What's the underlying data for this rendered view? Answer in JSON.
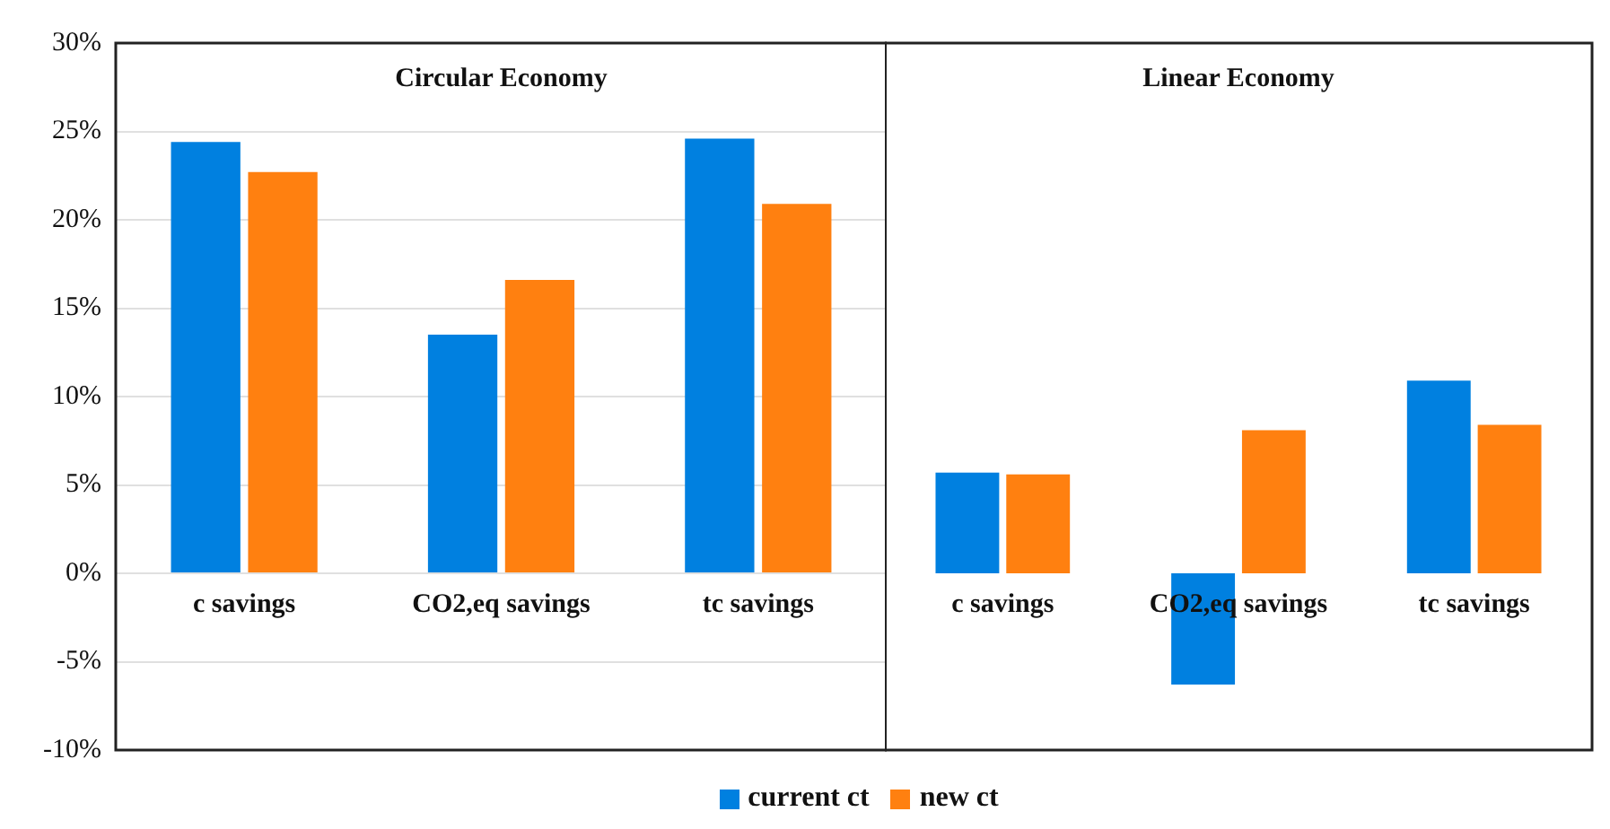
{
  "chart_data": [
    {
      "type": "bar",
      "title": "Circular Economy",
      "categories": [
        "c savings",
        "CO2,eq savings",
        "tc savings"
      ],
      "series": [
        {
          "name": "current ct",
          "color": "#0080e0",
          "values": [
            24.4,
            13.5,
            24.6
          ]
        },
        {
          "name": "new ct",
          "color": "#ff8010",
          "values": [
            22.7,
            16.6,
            20.9
          ]
        }
      ],
      "ylim": [
        -10,
        30
      ],
      "yticks": [
        {
          "value": -10,
          "label": "-10%"
        },
        {
          "value": -5,
          "label": "-5%"
        },
        {
          "value": 0,
          "label": "0%"
        },
        {
          "value": 5,
          "label": "5%"
        },
        {
          "value": 10,
          "label": "10%"
        },
        {
          "value": 15,
          "label": "15%"
        },
        {
          "value": 20,
          "label": "20%"
        },
        {
          "value": 25,
          "label": "25%"
        },
        {
          "value": 30,
          "label": "30%"
        }
      ],
      "grid": "y",
      "legend": "bottom"
    },
    {
      "type": "bar",
      "title": "Linear Economy",
      "categories": [
        "c savings",
        "CO2,eq savings",
        "tc savings"
      ],
      "series": [
        {
          "color": "#0080e0",
          "values": [
            5.7,
            -6.3,
            10.9
          ]
        },
        {
          "color": "#ff8010",
          "values": [
            5.6,
            8.1,
            8.4
          ]
        }
      ],
      "ylim": [
        -10,
        30
      ],
      "yticks": [
        {
          "value": -10,
          "label": null
        },
        {
          "value": -5,
          "label": null
        },
        {
          "value": 0,
          "label": null
        },
        {
          "value": 5,
          "label": null
        },
        {
          "value": 10,
          "label": null
        },
        {
          "value": 15,
          "label": null
        },
        {
          "value": 20,
          "label": null
        },
        {
          "value": 25,
          "label": null
        },
        {
          "value": 30,
          "label": null
        }
      ],
      "grid": "y",
      "tick_labels": "x"
    }
  ]
}
